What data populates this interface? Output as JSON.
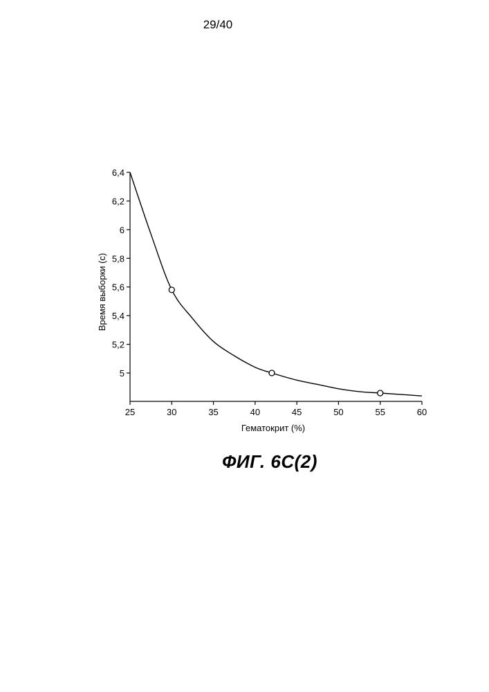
{
  "page": {
    "page_number": "29/40",
    "figure_caption": "ФИГ. 6С(2)"
  },
  "chart_data": {
    "type": "line",
    "title": "",
    "xlabel": "Гематокрит  (%)",
    "ylabel": "Время выборки (с)",
    "xlim": [
      25,
      60
    ],
    "ylim": [
      4.8,
      6.4
    ],
    "x_ticks": [
      25,
      30,
      35,
      40,
      45,
      50,
      55,
      60
    ],
    "x_tick_labels": [
      "25",
      "30",
      "35",
      "40",
      "45",
      "50",
      "55",
      "60"
    ],
    "y_ticks": [
      5.0,
      5.2,
      5.4,
      5.6,
      5.8,
      6.0,
      6.2,
      6.4
    ],
    "y_tick_labels": [
      "5",
      "5,2",
      "5,4",
      "5,6",
      "5,8",
      "6",
      "6,2",
      "6,4"
    ],
    "grid": false,
    "series": [
      {
        "kind": "fitted-curve",
        "x": [
          25,
          27.5,
          30,
          32.5,
          35,
          37.5,
          40,
          42,
          45,
          47.5,
          50,
          52.5,
          55,
          57.5,
          60
        ],
        "y": [
          6.4,
          5.97,
          5.58,
          5.38,
          5.22,
          5.12,
          5.04,
          5.0,
          4.95,
          4.92,
          4.89,
          4.87,
          4.86,
          4.85,
          4.84
        ]
      },
      {
        "kind": "markers",
        "x": [
          30,
          42,
          55
        ],
        "y": [
          5.58,
          5.0,
          4.86
        ]
      }
    ]
  }
}
